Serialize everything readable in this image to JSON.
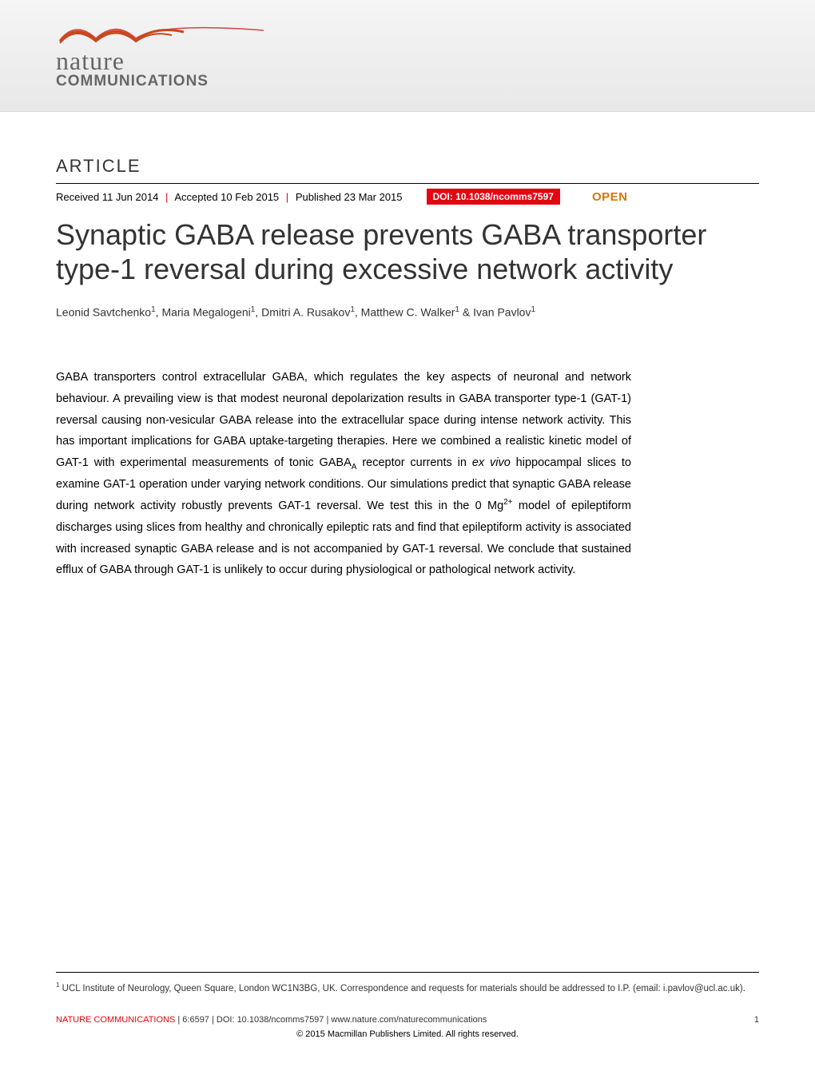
{
  "banner": {
    "logo_nature": "nature",
    "logo_comm": "COMMUNICATIONS",
    "swoosh_color_main": "#c8481e",
    "swoosh_color_tail": "#d14545",
    "banner_bg_top": "#f5f5f5",
    "banner_bg_bottom": "#e8e8e8"
  },
  "header": {
    "article_label": "ARTICLE",
    "received": "Received 11 Jun 2014",
    "accepted": "Accepted 10 Feb 2015",
    "published": "Published 23 Mar 2015",
    "doi": "DOI: 10.1038/ncomms7597",
    "open": "OPEN"
  },
  "title": "Synaptic GABA release prevents GABA transporter type-1 reversal during excessive network activity",
  "authors": {
    "a1": "Leonid Savtchenko",
    "a2": "Maria Megalogeni",
    "a3": "Dmitri A. Rusakov",
    "a4": "Matthew C. Walker",
    "a5": "Ivan Pavlov",
    "aff_mark": "1"
  },
  "abstract": "GABA transporters control extracellular GABA, which regulates the key aspects of neuronal and network behaviour. A prevailing view is that modest neuronal depolarization results in GABA transporter type-1 (GAT-1) reversal causing non-vesicular GABA release into the extracellular space during intense network activity. This has important implications for GABA uptake-targeting therapies. Here we combined a realistic kinetic model of GAT-1 with experimental measurements of tonic GABAA receptor currents in ex vivo hippocampal slices to examine GAT-1 operation under varying network conditions. Our simulations predict that synaptic GABA release during network activity robustly prevents GAT-1 reversal. We test this in the 0 Mg2+ model of epileptiform discharges using slices from healthy and chronically epileptic rats and find that epileptiform activity is associated with increased synaptic GABA release and is not accompanied by GAT-1 reversal. We conclude that sustained efflux of GABA through GAT-1 is unlikely to occur during physiological or pathological network activity.",
  "affiliation": "UCL Institute of Neurology, Queen Square, London WC1N3BG, UK. Correspondence and requests for materials should be addressed to I.P. (email: i.pavlov@ucl.ac.uk).",
  "footer": {
    "journal": "NATURE COMMUNICATIONS",
    "citation": " | 6:6597 | DOI: 10.1038/ncomms7597 | www.nature.com/naturecommunications",
    "page": "1",
    "copyright": "© 2015 Macmillan Publishers Limited. All rights reserved."
  },
  "colors": {
    "accent_red": "#e30613",
    "open_orange": "#d97706",
    "text_dark": "#333333",
    "text_black": "#000000",
    "separator": "#000000"
  }
}
